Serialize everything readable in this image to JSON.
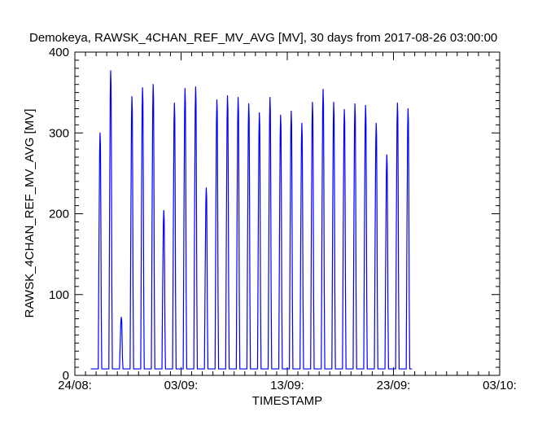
{
  "chart_data": {
    "type": "line",
    "title": "Demokeya, RAWSK_4CHAN_REF_MV_AVG [MV], 30 days from  2017-08-26 03:00:00",
    "xlabel": "TIMESTAMP",
    "ylabel": "RAWSK_4CHAN_REF_MV_AVG [MV]",
    "ylim": [
      0,
      400
    ],
    "xlim": [
      "2017-08-24",
      "2017-10-03"
    ],
    "yticks": [
      0,
      100,
      200,
      300,
      400
    ],
    "xtick_labels": [
      {
        "date": "2017-08-24",
        "label": "24/08:"
      },
      {
        "date": "2017-09-03",
        "label": "03/09:"
      },
      {
        "date": "2017-09-13",
        "label": "13/09:"
      },
      {
        "date": "2017-09-23",
        "label": "23/09:"
      },
      {
        "date": "2017-10-03",
        "label": "03/10:"
      }
    ],
    "grid": false,
    "line_color": "#0000ff",
    "baseline": 8,
    "series": [
      {
        "daily_peaks": [
          {
            "date": "2017-08-26",
            "value": 300
          },
          {
            "date": "2017-08-27",
            "value": 377
          },
          {
            "date": "2017-08-28",
            "value": 72
          },
          {
            "date": "2017-08-29",
            "value": 345
          },
          {
            "date": "2017-08-30",
            "value": 356
          },
          {
            "date": "2017-08-31",
            "value": 360
          },
          {
            "date": "2017-09-01",
            "value": 204
          },
          {
            "date": "2017-09-02",
            "value": 337
          },
          {
            "date": "2017-09-03",
            "value": 355
          },
          {
            "date": "2017-09-04",
            "value": 357
          },
          {
            "date": "2017-09-05",
            "value": 232
          },
          {
            "date": "2017-09-06",
            "value": 341
          },
          {
            "date": "2017-09-07",
            "value": 346
          },
          {
            "date": "2017-09-08",
            "value": 344
          },
          {
            "date": "2017-09-09",
            "value": 336
          },
          {
            "date": "2017-09-10",
            "value": 325
          },
          {
            "date": "2017-09-11",
            "value": 344
          },
          {
            "date": "2017-09-12",
            "value": 322
          },
          {
            "date": "2017-09-13",
            "value": 327
          },
          {
            "date": "2017-09-14",
            "value": 312
          },
          {
            "date": "2017-09-15",
            "value": 338
          },
          {
            "date": "2017-09-16",
            "value": 354
          },
          {
            "date": "2017-09-17",
            "value": 338
          },
          {
            "date": "2017-09-18",
            "value": 329
          },
          {
            "date": "2017-09-19",
            "value": 336
          },
          {
            "date": "2017-09-20",
            "value": 334
          },
          {
            "date": "2017-09-21",
            "value": 312
          },
          {
            "date": "2017-09-22",
            "value": 273
          },
          {
            "date": "2017-09-23",
            "value": 337
          },
          {
            "date": "2017-09-24",
            "value": 330
          }
        ],
        "end_date": "2017-09-24T18:00"
      }
    ]
  }
}
